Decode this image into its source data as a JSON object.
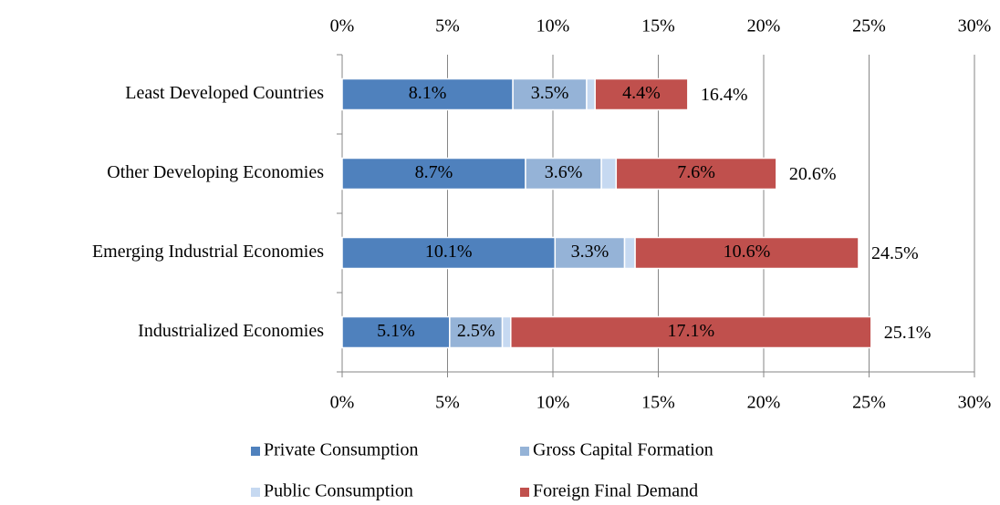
{
  "chart_data": {
    "type": "stacked-bar-horizontal",
    "categories": [
      "Least Developed Countries",
      "Other Developing Economies",
      "Emerging Industrial Economies",
      "Industrialized Economies"
    ],
    "series": [
      {
        "name": "Private Consumption",
        "color": "#4f81bd",
        "values": [
          8.1,
          8.7,
          10.1,
          5.1
        ],
        "value_labels": [
          "8.1%",
          "8.7%",
          "10.1%",
          "5.1%"
        ]
      },
      {
        "name": "Gross Capital Formation",
        "color": "#95b3d7",
        "values": [
          3.5,
          3.6,
          3.3,
          2.5
        ],
        "value_labels": [
          "3.5%",
          "3.6%",
          "3.3%",
          "2.5%"
        ]
      },
      {
        "name": "Public Consumption",
        "color": "#c6d9f1",
        "values": [
          0.4,
          0.7,
          0.5,
          0.4
        ]
      },
      {
        "name": "Foreign Final Demand",
        "color": "#c0504d",
        "values": [
          4.4,
          7.6,
          10.6,
          17.1
        ],
        "value_labels": [
          "4.4%",
          "7.6%",
          "10.6%",
          "17.1%"
        ]
      }
    ],
    "totals": {
      "values": [
        16.4,
        20.6,
        24.5,
        25.1
      ],
      "value_labels": [
        "16.4%",
        "20.6%",
        "24.5%",
        "25.1%"
      ]
    },
    "xlim": [
      0,
      30
    ],
    "xticks": [
      {
        "value": 0,
        "label": "0%"
      },
      {
        "value": 5,
        "label": "5%"
      },
      {
        "value": 10,
        "label": "10%"
      },
      {
        "value": 15,
        "label": "15%"
      },
      {
        "value": 20,
        "label": "20%"
      },
      {
        "value": 25,
        "label": "25%"
      },
      {
        "value": 30,
        "label": "30%"
      }
    ],
    "grid": true
  }
}
